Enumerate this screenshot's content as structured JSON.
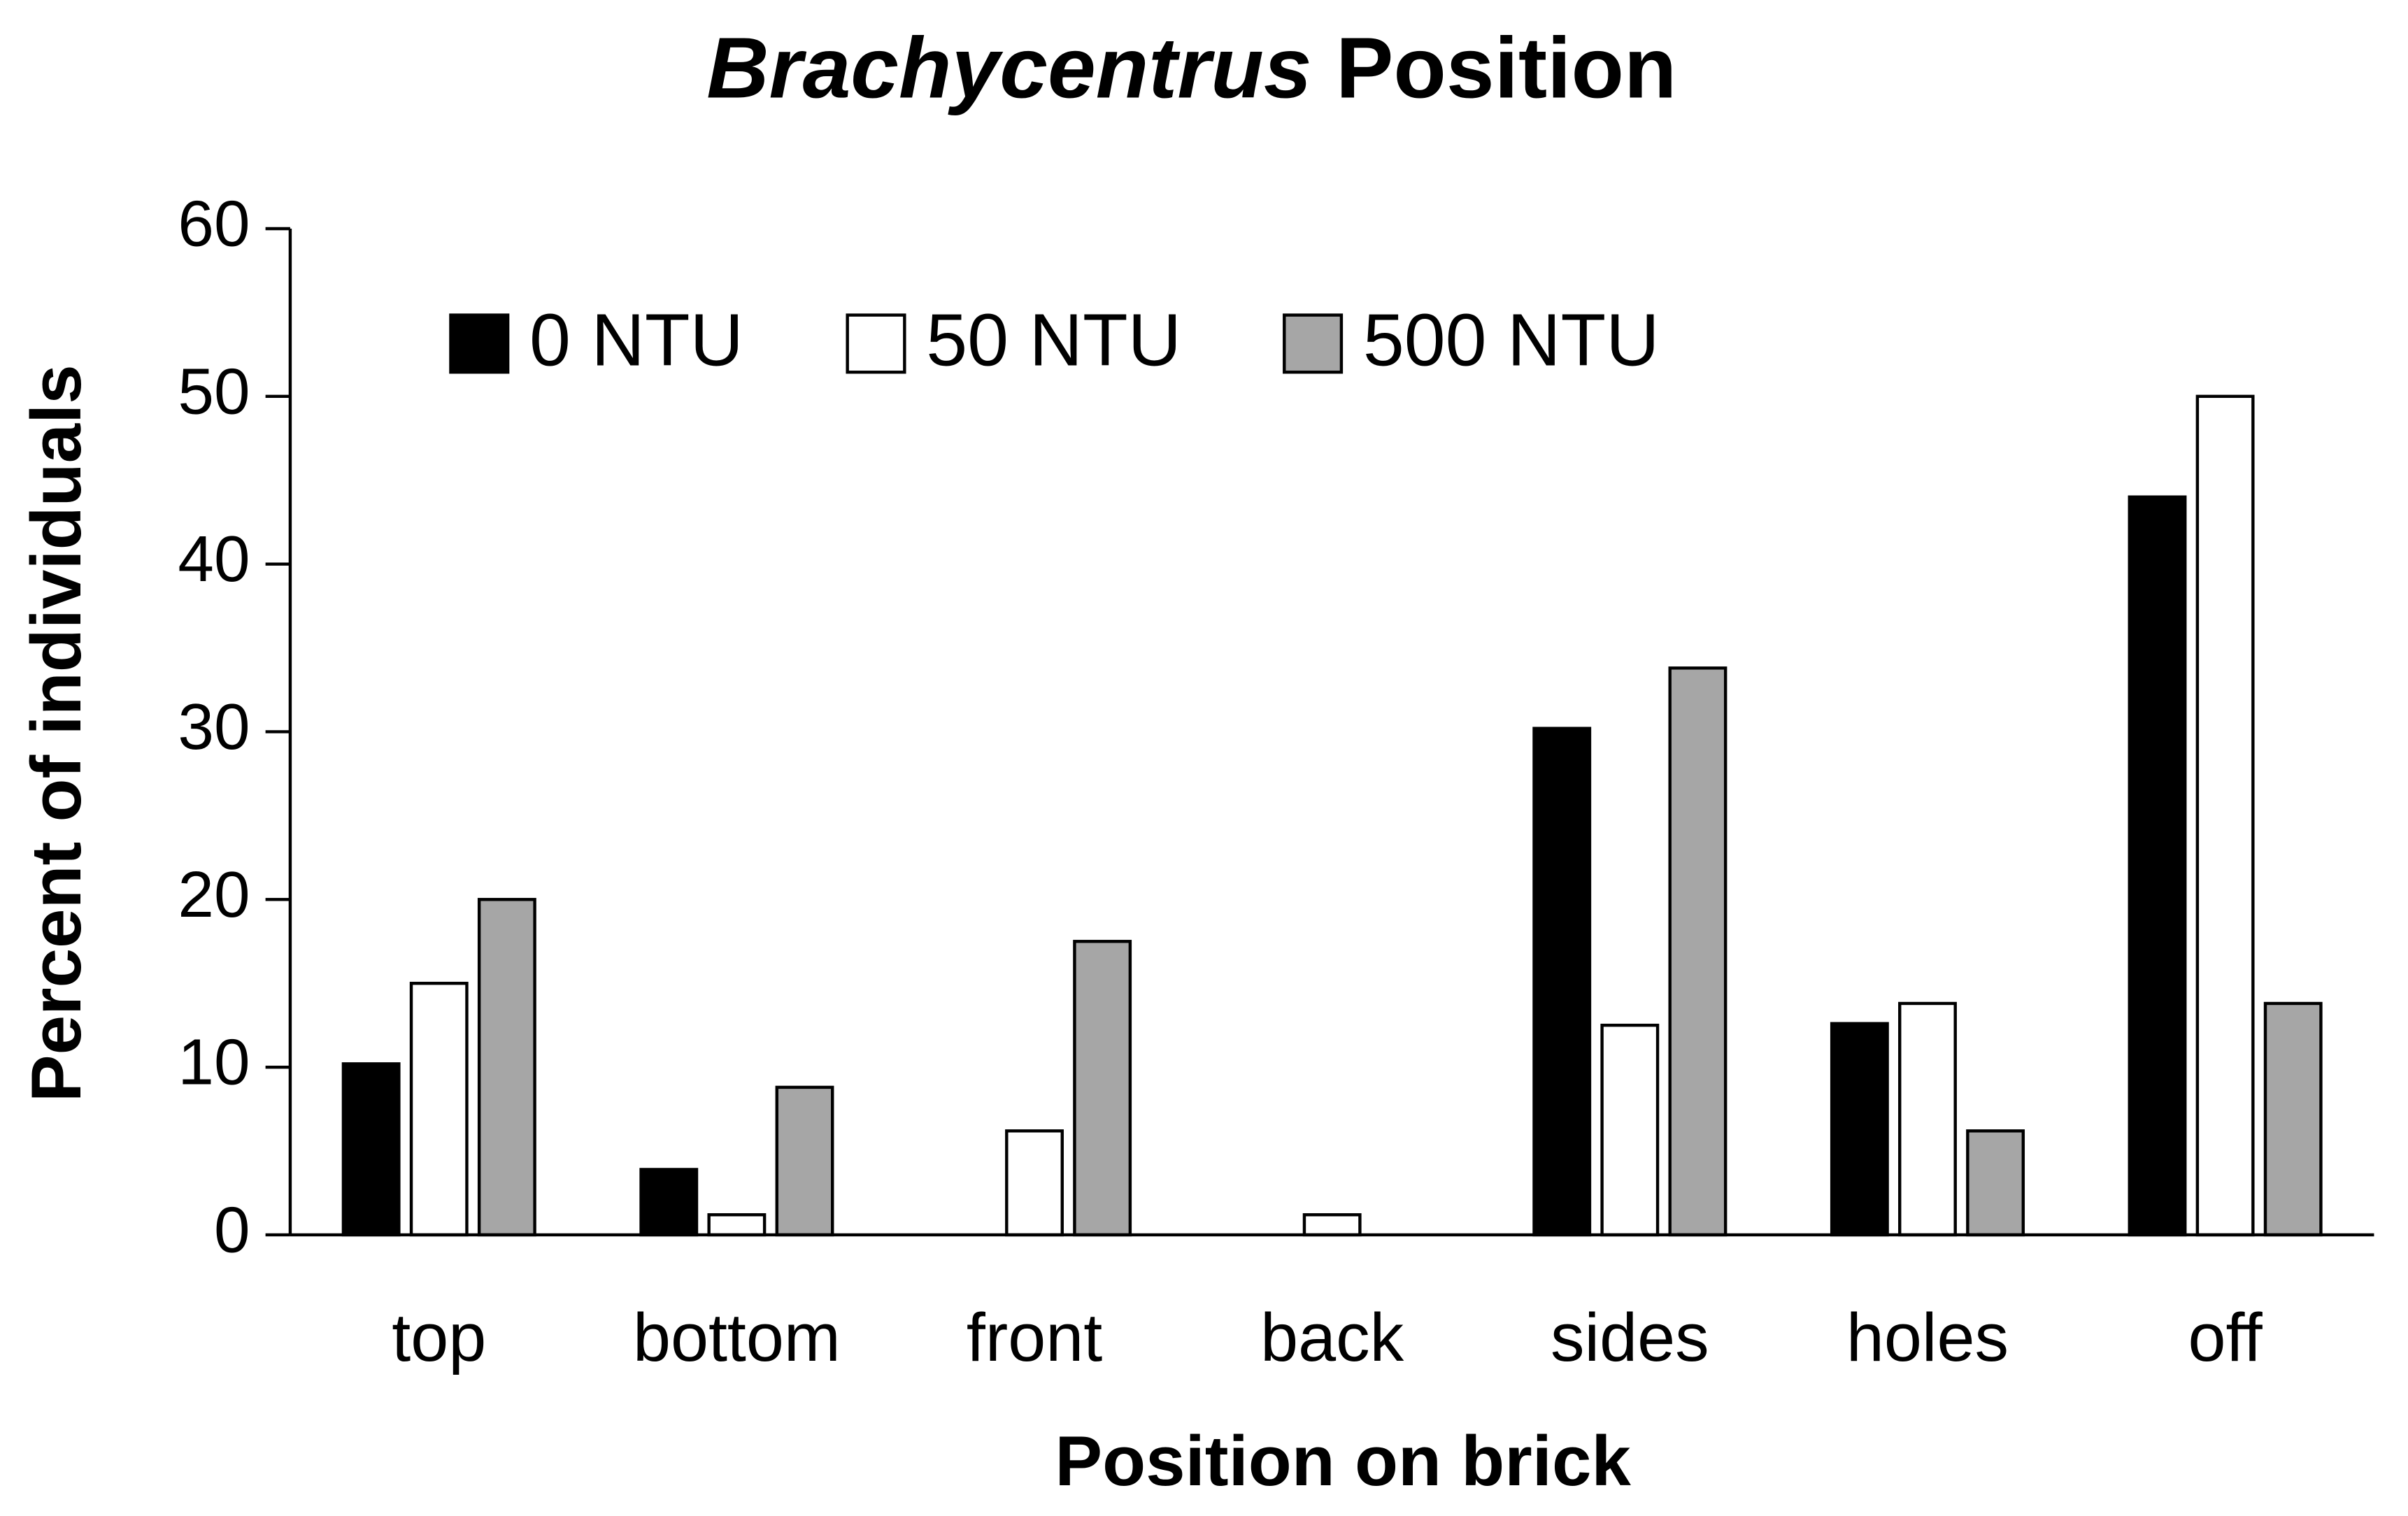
{
  "chart_data": {
    "type": "bar",
    "title": "Brachycentrus Position",
    "x_label": "Position on brick",
    "y_label": "Percent of individuals",
    "categories": [
      "top",
      "bottom",
      "front",
      "back",
      "sides",
      "holes",
      "off"
    ],
    "series": [
      {
        "name": "0 NTU",
        "color": "#000000",
        "values": [
          10.2,
          3.9,
          0,
          0,
          30.2,
          12.6,
          44
        ]
      },
      {
        "name": "50 NTU",
        "color": "#ffffff",
        "values": [
          15,
          1.2,
          6.2,
          1.2,
          12.5,
          13.8,
          50
        ]
      },
      {
        "name": "500 NTU",
        "color": "#a6a6a6",
        "values": [
          20,
          8.8,
          17.5,
          0,
          33.8,
          6.2,
          13.8
        ]
      }
    ],
    "ylim": [
      0,
      60
    ],
    "yticks": [
      0,
      10,
      20,
      30,
      40,
      50,
      60
    ],
    "grid": false,
    "legend": "top"
  }
}
